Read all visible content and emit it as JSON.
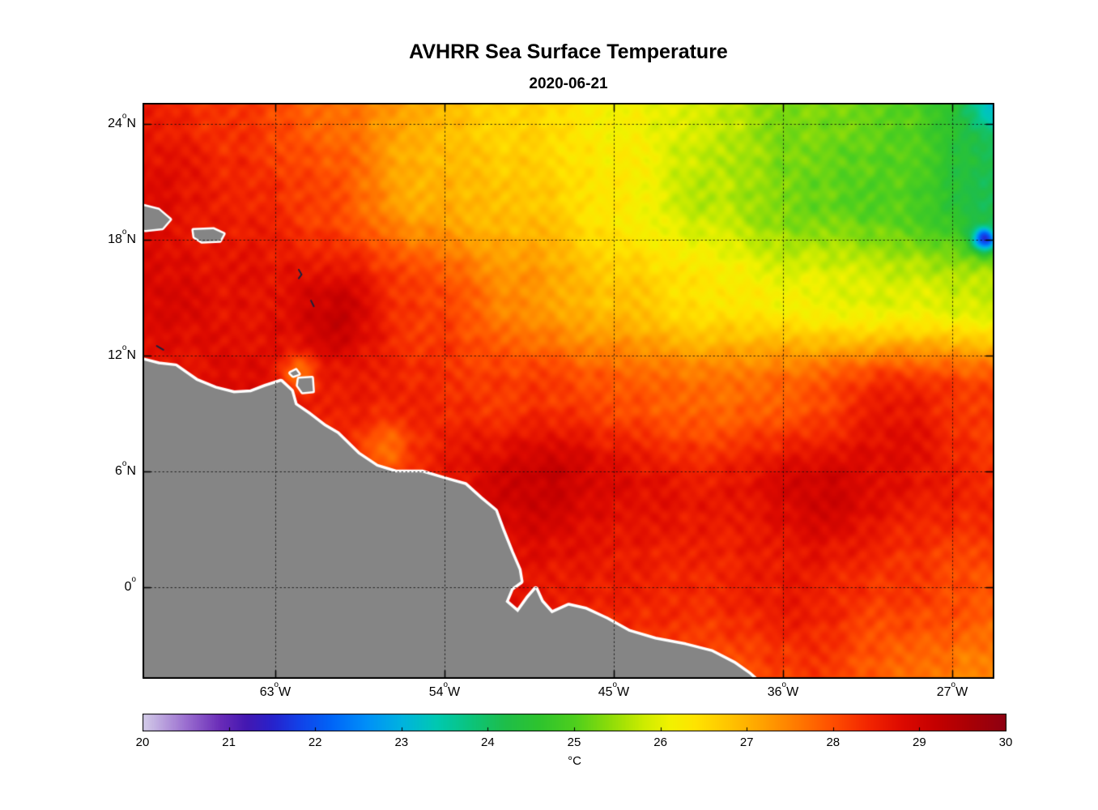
{
  "chart_data": {
    "type": "heatmap",
    "title": "AVHRR Sea Surface Temperature",
    "subtitle": "2020-06-21",
    "xlabel": "",
    "ylabel": "",
    "grid": true,
    "lon_range": [
      -70.06,
      -24.76
    ],
    "lat_range": [
      -4.74,
      25.09
    ],
    "xticks": {
      "values": [
        -63,
        -54,
        -45,
        -36,
        -27
      ],
      "labels": [
        "63°W",
        "54°W",
        "45°W",
        "36°W",
        "27°W"
      ]
    },
    "yticks": {
      "values": [
        24,
        18,
        12,
        6,
        0
      ],
      "labels": [
        "24°N",
        "18°N",
        "12°N",
        "6°N",
        "0°"
      ]
    },
    "colorbar": {
      "orientation": "horizontal",
      "min": 20,
      "max": 30,
      "unit": "°C",
      "tick_labels": [
        "20",
        "21",
        "22",
        "23",
        "24",
        "25",
        "26",
        "27",
        "28",
        "29",
        "30"
      ]
    },
    "colormap_stops": [
      [
        0.0,
        "#d4cde9"
      ],
      [
        0.05,
        "#9b6fd0"
      ],
      [
        0.09,
        "#6a2cb8"
      ],
      [
        0.12,
        "#4418b2"
      ],
      [
        0.15,
        "#2822cc"
      ],
      [
        0.18,
        "#1341e8"
      ],
      [
        0.22,
        "#0067f8"
      ],
      [
        0.26,
        "#0091f8"
      ],
      [
        0.3,
        "#00b3e0"
      ],
      [
        0.34,
        "#00c9b2"
      ],
      [
        0.38,
        "#0cc47c"
      ],
      [
        0.42,
        "#1fbe4a"
      ],
      [
        0.46,
        "#2fc42e"
      ],
      [
        0.5,
        "#4ecf1e"
      ],
      [
        0.54,
        "#8cdc0a"
      ],
      [
        0.58,
        "#cdec00"
      ],
      [
        0.61,
        "#f2f200"
      ],
      [
        0.64,
        "#ffe400"
      ],
      [
        0.68,
        "#ffc400"
      ],
      [
        0.72,
        "#ffa000"
      ],
      [
        0.76,
        "#ff7800"
      ],
      [
        0.8,
        "#ff4e00"
      ],
      [
        0.84,
        "#f32600"
      ],
      [
        0.88,
        "#dd0a00"
      ],
      [
        0.92,
        "#c40000"
      ],
      [
        0.96,
        "#a80006"
      ],
      [
        1.0,
        "#8e0012"
      ]
    ],
    "sst_grid": {
      "lons": [
        -70,
        -65,
        -60,
        -55,
        -50,
        -45,
        -40,
        -35,
        -30,
        -25
      ],
      "lats": [
        25,
        20,
        15,
        10,
        5,
        0,
        -5
      ],
      "values_c": [
        [
          28.6,
          28.2,
          27.8,
          27.2,
          26.6,
          26.2,
          25.8,
          25.3,
          25.1,
          24.3
        ],
        [
          28.8,
          28.5,
          28.1,
          27.5,
          26.9,
          26.3,
          25.7,
          25.2,
          25.0,
          24.2
        ],
        [
          28.9,
          28.7,
          28.8,
          28.2,
          27.4,
          26.8,
          26.4,
          26.1,
          25.9,
          25.8
        ],
        [
          28.6,
          28.8,
          28.6,
          28.4,
          28.2,
          28.0,
          27.7,
          27.9,
          28.3,
          28.1
        ],
        [
          28.6,
          28.5,
          28.2,
          28.6,
          29.0,
          28.8,
          28.6,
          28.8,
          28.6,
          28.4
        ],
        [
          28.6,
          28.6,
          28.5,
          28.6,
          28.7,
          28.5,
          28.4,
          28.6,
          28.2,
          28.0
        ],
        [
          28.5,
          28.5,
          28.5,
          28.4,
          28.3,
          28.1,
          28.0,
          28.2,
          27.8,
          27.4
        ]
      ]
    },
    "features": [
      [
        -25.27,
        18.0,
        -3.2,
        0.45
      ],
      [
        -24.7,
        25.0,
        -1.3,
        1.0
      ],
      [
        -59.5,
        13.9,
        0.4,
        1.4
      ],
      [
        -57.0,
        7.2,
        -0.7,
        1.0
      ],
      [
        -61.8,
        11.1,
        -1.0,
        0.7
      ],
      [
        -48.0,
        6.8,
        0.35,
        1.6
      ],
      [
        -29.5,
        9.0,
        0.3,
        2.0
      ],
      [
        -33.0,
        5.5,
        0.3,
        2.0
      ],
      [
        -55.0,
        21.0,
        -0.45,
        2.8
      ]
    ],
    "land": {
      "color": "#858585",
      "outline": "#ffffff",
      "mainland": [
        [
          -70.6,
          11.9
        ],
        [
          -69.2,
          11.55
        ],
        [
          -68.3,
          11.45
        ],
        [
          -67.2,
          10.7
        ],
        [
          -66.2,
          10.3
        ],
        [
          -65.2,
          10.05
        ],
        [
          -64.3,
          10.1
        ],
        [
          -63.5,
          10.4
        ],
        [
          -62.7,
          10.65
        ],
        [
          -62.15,
          10.15
        ],
        [
          -61.95,
          9.45
        ],
        [
          -61.2,
          8.95
        ],
        [
          -60.4,
          8.35
        ],
        [
          -59.7,
          7.95
        ],
        [
          -58.6,
          6.9
        ],
        [
          -57.6,
          6.25
        ],
        [
          -56.6,
          5.95
        ],
        [
          -55.2,
          5.95
        ],
        [
          -54.0,
          5.6
        ],
        [
          -52.9,
          5.3
        ],
        [
          -52.1,
          4.6
        ],
        [
          -51.3,
          3.95
        ],
        [
          -50.9,
          2.9
        ],
        [
          -50.45,
          1.8
        ],
        [
          -50.05,
          0.9
        ],
        [
          -49.95,
          0.3
        ],
        [
          -50.45,
          -0.05
        ],
        [
          -50.75,
          -0.75
        ],
        [
          -50.1,
          -1.3
        ],
        [
          -49.55,
          -0.55
        ],
        [
          -49.15,
          -0.1
        ],
        [
          -48.85,
          -0.75
        ],
        [
          -48.3,
          -1.35
        ],
        [
          -47.4,
          -0.95
        ],
        [
          -46.5,
          -1.15
        ],
        [
          -45.4,
          -1.65
        ],
        [
          -44.2,
          -2.3
        ],
        [
          -42.8,
          -2.7
        ],
        [
          -41.2,
          -3.0
        ],
        [
          -39.8,
          -3.35
        ],
        [
          -38.6,
          -3.95
        ],
        [
          -37.8,
          -4.5
        ],
        [
          -37.0,
          -5.2
        ],
        [
          -36.8,
          -5.7
        ],
        [
          -70.6,
          -5.7
        ]
      ],
      "islands": [
        [
          [
            -70.6,
            19.9
          ],
          [
            -69.2,
            19.55
          ],
          [
            -68.6,
            19.05
          ],
          [
            -69.0,
            18.6
          ],
          [
            -69.9,
            18.5
          ],
          [
            -70.6,
            18.62
          ]
        ],
        [
          [
            -67.35,
            18.5
          ],
          [
            -66.3,
            18.55
          ],
          [
            -65.75,
            18.3
          ],
          [
            -65.95,
            17.95
          ],
          [
            -66.9,
            17.9
          ],
          [
            -67.3,
            18.15
          ]
        ],
        [
          [
            -61.75,
            10.8
          ],
          [
            -61.05,
            10.85
          ],
          [
            -61.0,
            10.15
          ],
          [
            -61.55,
            10.1
          ],
          [
            -61.8,
            10.45
          ]
        ],
        [
          [
            -62.2,
            11.1
          ],
          [
            -61.9,
            11.25
          ],
          [
            -61.75,
            11.05
          ],
          [
            -62.05,
            10.95
          ]
        ]
      ],
      "marks": [
        [
          [
            -61.75,
            16.45
          ],
          [
            -61.6,
            16.2
          ],
          [
            -61.75,
            16.0
          ]
        ],
        [
          [
            -61.1,
            14.85
          ],
          [
            -60.95,
            14.55
          ]
        ],
        [
          [
            -69.3,
            12.5
          ],
          [
            -68.95,
            12.3
          ]
        ]
      ]
    }
  }
}
